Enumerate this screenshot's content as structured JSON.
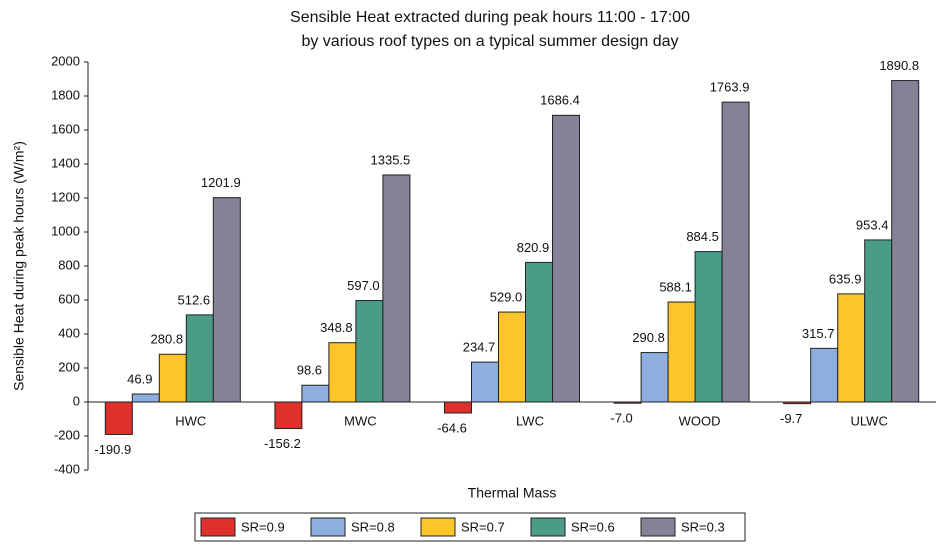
{
  "chart_data": {
    "type": "bar",
    "title": [
      "Sensible Heat extracted during peak hours 11:00 - 17:00",
      "by various roof types on a typical summer design day"
    ],
    "x_label": "Thermal Mass",
    "y_label": "Sensible Heat during peak hours (W/m²)",
    "categories": [
      "HWC",
      "MWC",
      "LWC",
      "WOOD",
      "ULWC"
    ],
    "series": [
      {
        "name": "SR=0.9",
        "color": "#e0302b",
        "values": [
          -190.9,
          -156.2,
          -64.6,
          -7.0,
          -9.7
        ],
        "value_labels": [
          "-190.9",
          "-156.2",
          "-64.6",
          "-7.0",
          "-9.7"
        ]
      },
      {
        "name": "SR=0.8",
        "color": "#8eaee0",
        "values": [
          46.9,
          98.6,
          234.7,
          290.8,
          315.7
        ],
        "value_labels": [
          "46.9",
          "98.6",
          "234.7",
          "290.8",
          "315.7"
        ]
      },
      {
        "name": "SR=0.7",
        "color": "#fdc52a",
        "values": [
          280.8,
          348.8,
          529.0,
          588.1,
          635.9
        ],
        "value_labels": [
          "280.8",
          "348.8",
          "529.0",
          "588.1",
          "635.9"
        ]
      },
      {
        "name": "SR=0.6",
        "color": "#4a9c87",
        "values": [
          512.6,
          597.0,
          820.9,
          884.5,
          953.4
        ],
        "value_labels": [
          "512.6",
          "597.0",
          "820.9",
          "884.5",
          "953.4"
        ]
      },
      {
        "name": "SR=0.3",
        "color": "#858197",
        "values": [
          1201.9,
          1335.5,
          1686.4,
          1763.9,
          1890.8
        ],
        "value_labels": [
          "1201.9",
          "1335.5",
          "1686.4",
          "1763.9",
          "1890.8"
        ]
      }
    ],
    "ylim": [
      -400,
      2000
    ],
    "yticks": [
      -400,
      -200,
      0,
      200,
      400,
      600,
      800,
      1000,
      1200,
      1400,
      1600,
      1800,
      2000
    ],
    "legend": "bottom"
  }
}
